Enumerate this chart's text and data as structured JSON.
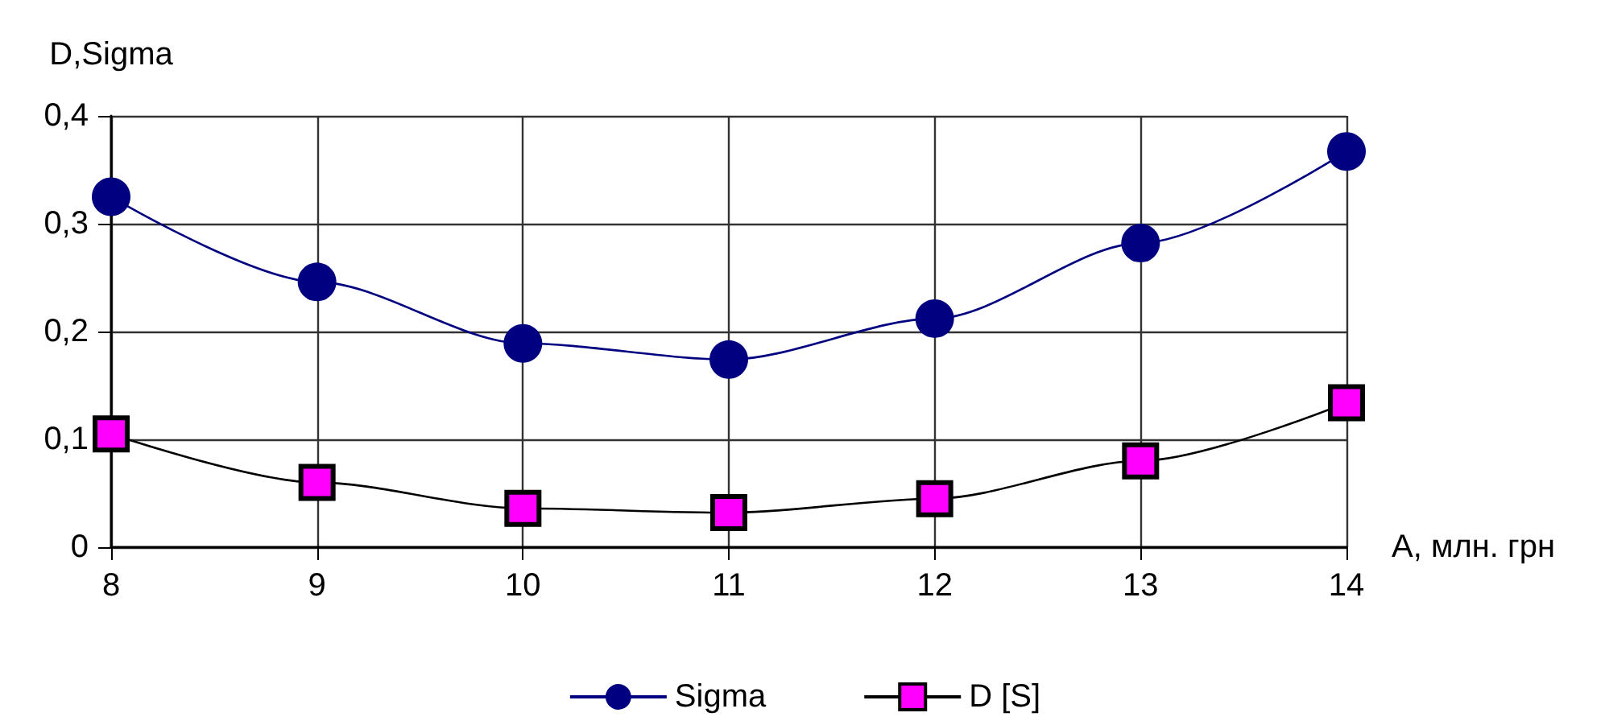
{
  "chart_data": {
    "type": "line",
    "xlabel": "A, млн. грн",
    "ylabel": "D,Sigma",
    "x": [
      8,
      9,
      10,
      11,
      12,
      13,
      14
    ],
    "series": [
      {
        "name": "Sigma",
        "color": "#000080",
        "marker": "circle",
        "values": [
          0.325,
          0.246,
          0.189,
          0.174,
          0.212,
          0.282,
          0.367
        ]
      },
      {
        "name": "D [S]",
        "color": "#ff00ff",
        "marker": "square",
        "values": [
          0.105,
          0.06,
          0.036,
          0.032,
          0.045,
          0.08,
          0.134
        ]
      }
    ],
    "xlim": [
      8,
      14
    ],
    "xticks": [
      8,
      9,
      10,
      11,
      12,
      13,
      14
    ],
    "ylim": [
      0,
      0.4
    ],
    "yticks": [
      0,
      {
        "value": 0.1,
        "label": "0,1"
      },
      {
        "value": 0.2,
        "label": "0,2"
      },
      {
        "value": 0.3,
        "label": "0,3"
      },
      {
        "value": 0.4,
        "label": "0,4"
      }
    ],
    "grid": true,
    "legend": "bottom",
    "line_style": "solid"
  }
}
